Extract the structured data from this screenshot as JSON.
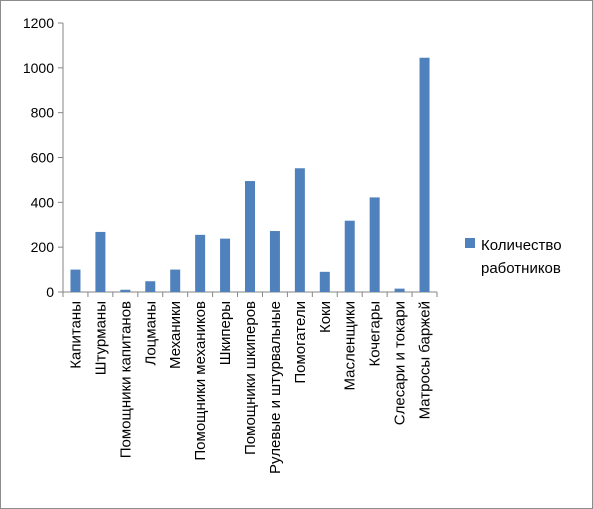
{
  "chart_data": {
    "type": "bar",
    "title": "",
    "xlabel": "",
    "ylabel": "",
    "ylim": [
      0,
      1200
    ],
    "yticks": [
      0,
      200,
      400,
      600,
      800,
      1000,
      1200
    ],
    "grid": false,
    "legend_position": "right",
    "bar_color": "#4f81bd",
    "categories": [
      "Капитаны",
      "Штурманы",
      "Помощники капитанов",
      "Лоцманы",
      "Механики",
      "Помощники механиков",
      "Шкиперы",
      "Помощники шкиперов",
      "Рулевые и штурвальные",
      "Помогатели",
      "Коки",
      "Масленщики",
      "Кочегары",
      "Слесари и токари",
      "Матросы баржей"
    ],
    "series": [
      {
        "name": "Количество работников",
        "values": [
          100,
          268,
          10,
          48,
          100,
          255,
          238,
          495,
          272,
          552,
          90,
          318,
          422,
          15,
          1045
        ]
      }
    ]
  }
}
